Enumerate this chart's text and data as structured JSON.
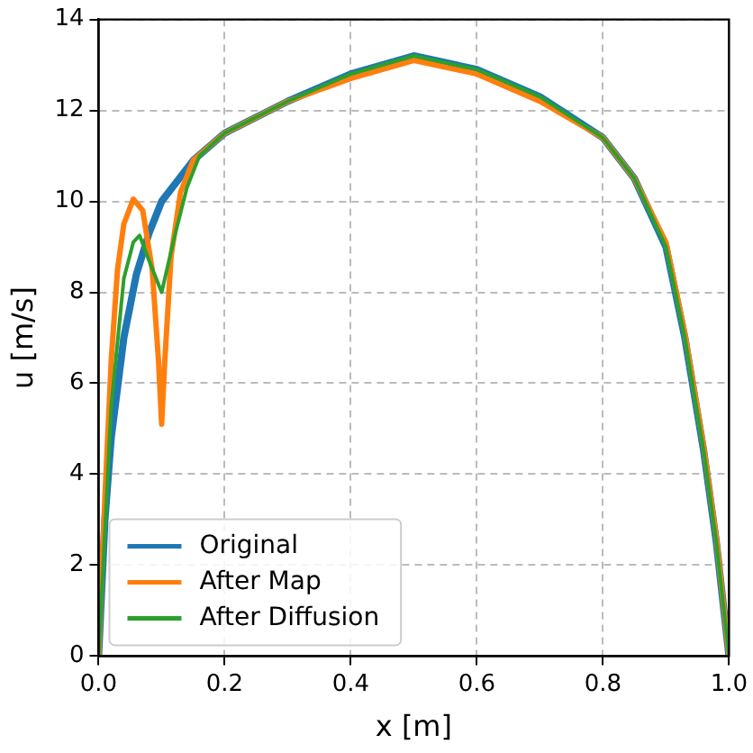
{
  "chart_data": {
    "type": "line",
    "xlabel": "x [m]",
    "ylabel": "u [m/s]",
    "xlim": [
      0,
      1
    ],
    "ylim": [
      0,
      14
    ],
    "xticks": [
      {
        "value": 0,
        "label": "0.0"
      },
      {
        "value": 0.2,
        "label": "0.2"
      },
      {
        "value": 0.4,
        "label": "0.4"
      },
      {
        "value": 0.6,
        "label": "0.6"
      },
      {
        "value": 0.8,
        "label": "0.8"
      },
      {
        "value": 1,
        "label": "1.0"
      }
    ],
    "yticks": [
      0,
      2,
      4,
      6,
      8,
      10,
      12,
      14
    ],
    "grid": true,
    "legend": "bottom left",
    "line_style": "solid",
    "marker": "none",
    "series": [
      {
        "name": "Original",
        "color": "#1f77b4",
        "x": [
          0,
          0.01,
          0.02,
          0.04,
          0.06,
          0.08,
          0.1,
          0.15,
          0.2,
          0.3,
          0.4,
          0.5,
          0.6,
          0.7,
          0.8,
          0.85,
          0.9,
          0.93,
          0.96,
          0.98,
          1
        ],
        "values": [
          0,
          3,
          4.8,
          7,
          8.4,
          9.3,
          10,
          10.9,
          11.5,
          12.2,
          12.8,
          13.2,
          12.9,
          12.3,
          11.4,
          10.5,
          9,
          7,
          4.5,
          2.5,
          0
        ]
      },
      {
        "name": "After Map",
        "color": "#ff7f0e",
        "x": [
          0,
          0.01,
          0.02,
          0.03,
          0.04,
          0.055,
          0.07,
          0.085,
          0.095,
          0.1,
          0.105,
          0.115,
          0.13,
          0.15,
          0.2,
          0.3,
          0.4,
          0.5,
          0.6,
          0.7,
          0.8,
          0.85,
          0.9,
          0.93,
          0.96,
          0.98,
          1
        ],
        "values": [
          0,
          3.5,
          6.5,
          8.5,
          9.5,
          10.05,
          9.8,
          8.5,
          6.5,
          5.1,
          6.5,
          8.8,
          10.2,
          10.9,
          11.5,
          12.2,
          12.7,
          13.1,
          12.8,
          12.2,
          11.4,
          10.5,
          9.1,
          7.1,
          4.6,
          2.6,
          0
        ]
      },
      {
        "name": "After Diffusion",
        "color": "#2ca02c",
        "x": [
          0,
          0.02,
          0.04,
          0.055,
          0.065,
          0.08,
          0.1,
          0.12,
          0.14,
          0.16,
          0.2,
          0.3,
          0.4,
          0.5,
          0.6,
          0.7,
          0.8,
          0.85,
          0.9,
          0.93,
          0.96,
          0.98,
          1
        ],
        "values": [
          0,
          5.5,
          8.3,
          9.1,
          9.25,
          8.7,
          8,
          9.2,
          10.3,
          11,
          11.5,
          12.2,
          12.8,
          13.2,
          12.9,
          12.3,
          11.4,
          10.5,
          9,
          7,
          4.5,
          2.5,
          0
        ]
      }
    ]
  }
}
